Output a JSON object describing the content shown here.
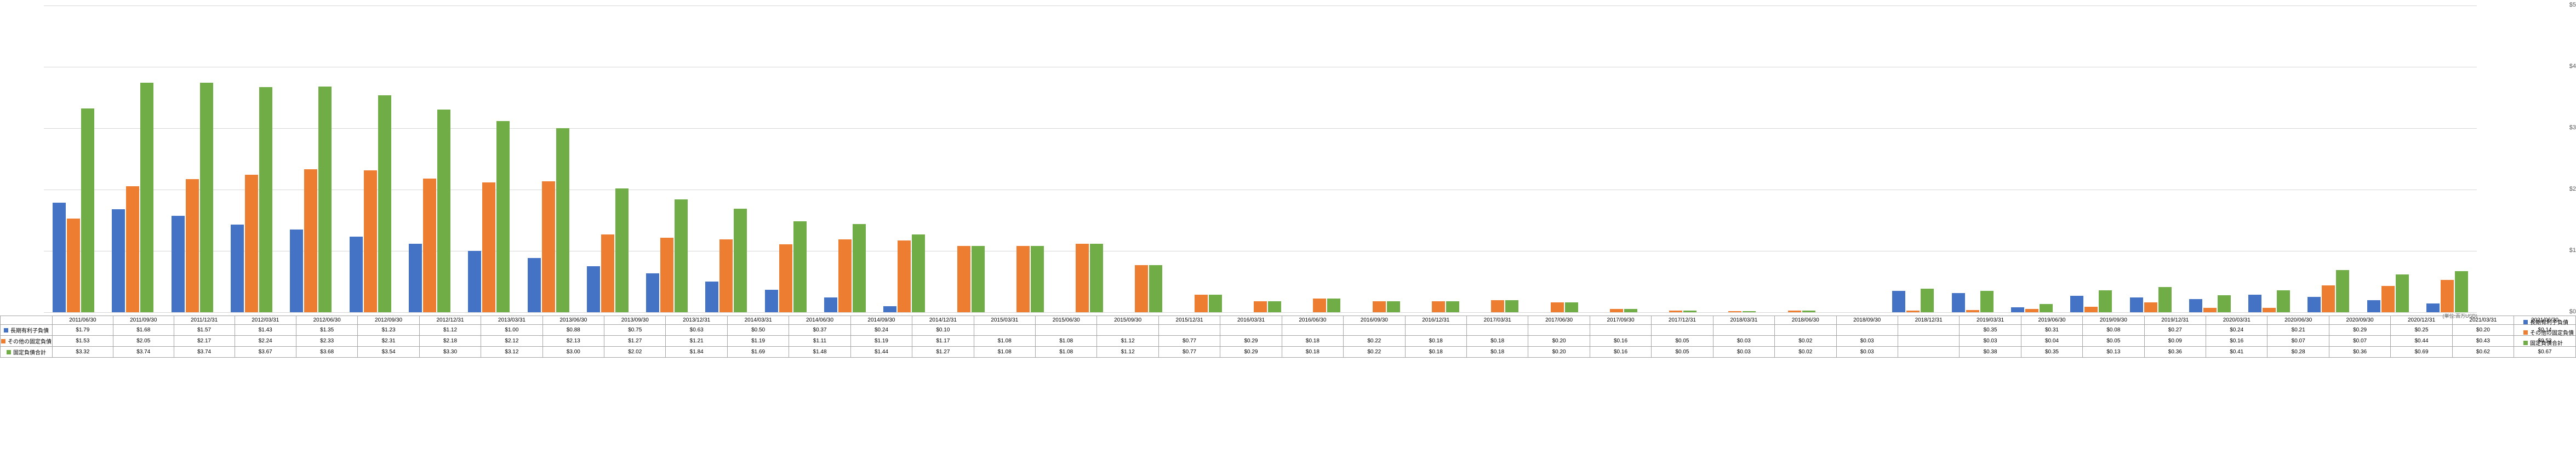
{
  "chart": {
    "type": "bar",
    "ylim": [
      0,
      5
    ],
    "ytick_step": 1,
    "ytick_prefix": "$",
    "background_color": "#ffffff",
    "grid_color": "#d9d9d9",
    "unit_label": "(単位:百万USD)",
    "series": [
      {
        "key": "debt",
        "label": "長期有利子負債",
        "color": "#4472c4"
      },
      {
        "key": "other",
        "label": "その他の固定負債",
        "color": "#ed7d31"
      },
      {
        "key": "total",
        "label": "固定負債合計",
        "color": "#70ad47"
      }
    ],
    "periods": [
      {
        "date": "2011/06/30",
        "debt": 1.79,
        "other": 1.53,
        "total": 3.32
      },
      {
        "date": "2011/09/30",
        "debt": 1.68,
        "other": 2.05,
        "total": 3.74
      },
      {
        "date": "2011/12/31",
        "debt": 1.57,
        "other": 2.17,
        "total": 3.74
      },
      {
        "date": "2012/03/31",
        "debt": 1.43,
        "other": 2.24,
        "total": 3.67
      },
      {
        "date": "2012/06/30",
        "debt": 1.35,
        "other": 2.33,
        "total": 3.68
      },
      {
        "date": "2012/09/30",
        "debt": 1.23,
        "other": 2.31,
        "total": 3.54
      },
      {
        "date": "2012/12/31",
        "debt": 1.12,
        "other": 2.18,
        "total": 3.3
      },
      {
        "date": "2013/03/31",
        "debt": 1.0,
        "other": 2.12,
        "total": 3.12
      },
      {
        "date": "2013/06/30",
        "debt": 0.88,
        "other": 2.13,
        "total": 3.0
      },
      {
        "date": "2013/09/30",
        "debt": 0.75,
        "other": 1.27,
        "total": 2.02
      },
      {
        "date": "2013/12/31",
        "debt": 0.63,
        "other": 1.21,
        "total": 1.84
      },
      {
        "date": "2014/03/31",
        "debt": 0.5,
        "other": 1.19,
        "total": 1.69
      },
      {
        "date": "2014/06/30",
        "debt": 0.37,
        "other": 1.11,
        "total": 1.48
      },
      {
        "date": "2014/09/30",
        "debt": 0.24,
        "other": 1.19,
        "total": 1.44
      },
      {
        "date": "2014/12/31",
        "debt": 0.1,
        "other": 1.17,
        "total": 1.27
      },
      {
        "date": "2015/03/31",
        "debt": null,
        "other": 1.08,
        "total": 1.08
      },
      {
        "date": "2015/06/30",
        "debt": null,
        "other": 1.08,
        "total": 1.08
      },
      {
        "date": "2015/09/30",
        "debt": null,
        "other": 1.12,
        "total": 1.12
      },
      {
        "date": "2015/12/31",
        "debt": null,
        "other": 0.77,
        "total": 0.77
      },
      {
        "date": "2016/03/31",
        "debt": null,
        "other": 0.29,
        "total": 0.29
      },
      {
        "date": "2016/06/30",
        "debt": null,
        "other": 0.18,
        "total": 0.18
      },
      {
        "date": "2016/09/30",
        "debt": null,
        "other": 0.22,
        "total": 0.22
      },
      {
        "date": "2016/12/31",
        "debt": null,
        "other": 0.18,
        "total": 0.18
      },
      {
        "date": "2017/03/31",
        "debt": null,
        "other": 0.18,
        "total": 0.18
      },
      {
        "date": "2017/06/30",
        "debt": null,
        "other": 0.2,
        "total": 0.2
      },
      {
        "date": "2017/09/30",
        "debt": null,
        "other": 0.16,
        "total": 0.16
      },
      {
        "date": "2017/12/31",
        "debt": null,
        "other": 0.05,
        "total": 0.05
      },
      {
        "date": "2018/03/31",
        "debt": null,
        "other": 0.03,
        "total": 0.03
      },
      {
        "date": "2018/06/30",
        "debt": null,
        "other": 0.02,
        "total": 0.02
      },
      {
        "date": "2018/09/30",
        "debt": null,
        "other": 0.03,
        "total": 0.03
      },
      {
        "date": "2018/12/31",
        "debt": null,
        "other": null,
        "total": null
      },
      {
        "date": "2019/03/31",
        "debt": 0.35,
        "other": 0.03,
        "total": 0.38
      },
      {
        "date": "2019/06/30",
        "debt": 0.31,
        "other": 0.04,
        "total": 0.35
      },
      {
        "date": "2019/09/30",
        "debt": 0.08,
        "other": 0.05,
        "total": 0.13
      },
      {
        "date": "2019/12/31",
        "debt": 0.27,
        "other": 0.09,
        "total": 0.36
      },
      {
        "date": "2020/03/31",
        "debt": 0.24,
        "other": 0.16,
        "total": 0.41
      },
      {
        "date": "2020/06/30",
        "debt": 0.21,
        "other": 0.07,
        "total": 0.28
      },
      {
        "date": "2020/09/30",
        "debt": 0.29,
        "other": 0.07,
        "total": 0.36
      },
      {
        "date": "2020/12/31",
        "debt": 0.25,
        "other": 0.44,
        "total": 0.69
      },
      {
        "date": "2021/03/31",
        "debt": 0.2,
        "other": 0.43,
        "total": 0.62
      },
      {
        "date": "2021/06/30",
        "debt": 0.14,
        "other": 0.53,
        "total": 0.67
      }
    ]
  }
}
